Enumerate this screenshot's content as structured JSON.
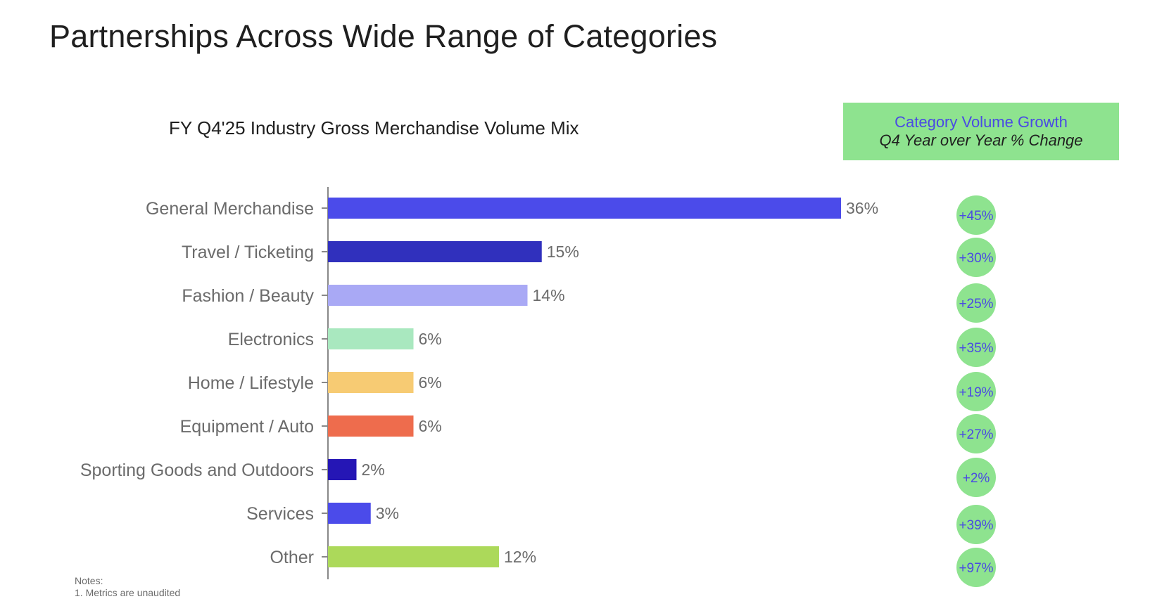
{
  "slide": {
    "title": "Partnerships Across Wide Range of Categories"
  },
  "growth_header": {
    "title": "Category Volume Growth",
    "subtitle": "Q4 Year over Year % Change"
  },
  "notes": {
    "heading": "Notes:",
    "line1": "1. Metrics are unaudited"
  },
  "chart_data": {
    "type": "bar",
    "orientation": "horizontal",
    "title": "FY Q4'25 Industry Gross Merchandise Volume Mix",
    "xlabel": "",
    "ylabel": "",
    "xlim": [
      0,
      36
    ],
    "grid": false,
    "categories": [
      "General Merchandise",
      "Travel / Ticketing",
      "Fashion / Beauty",
      "Electronics",
      "Home / Lifestyle",
      "Equipment / Auto",
      "Sporting Goods and Outdoors",
      "Services",
      "Other"
    ],
    "values": [
      36,
      15,
      14,
      6,
      6,
      6,
      2,
      3,
      12
    ],
    "value_labels": [
      "36%",
      "15%",
      "14%",
      "6%",
      "6%",
      "6%",
      "2%",
      "3%",
      "12%"
    ],
    "bar_colors": [
      "#4b4bea",
      "#3030bd",
      "#a9a9f5",
      "#a9e8bf",
      "#f7cb73",
      "#ee6c4d",
      "#2516b5",
      "#4b4bea",
      "#acd95a"
    ],
    "growth_labels": [
      "+45%",
      "+30%",
      "+25%",
      "+35%",
      "+19%",
      "+27%",
      "+2%",
      "+39%",
      "+97%"
    ],
    "growth_values": [
      45,
      30,
      25,
      35,
      19,
      27,
      2,
      39,
      97
    ],
    "growth_color": "#8ee38f",
    "growth_text_color": "#4a4ae3"
  }
}
